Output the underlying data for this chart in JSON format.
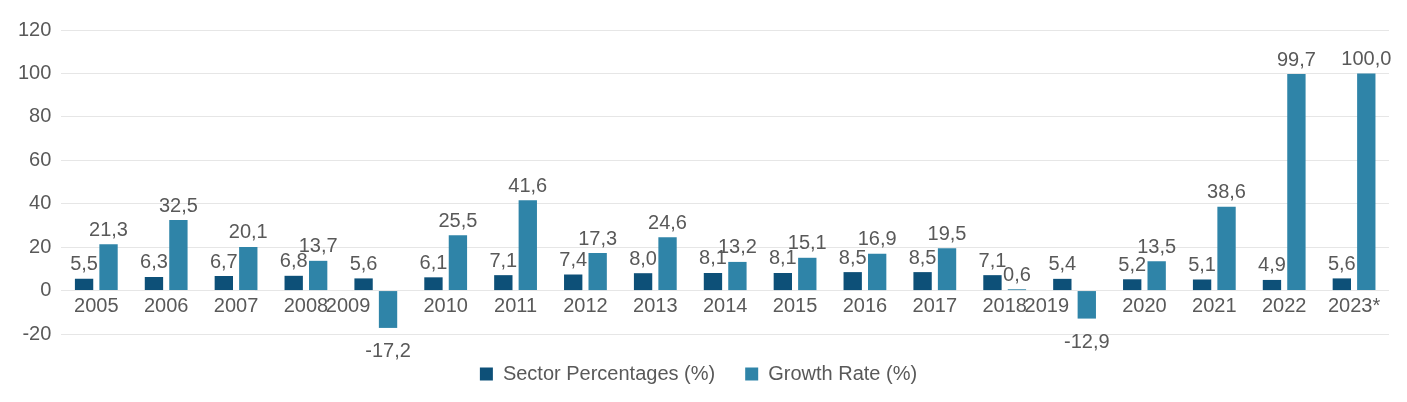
{
  "chart_data": {
    "type": "bar",
    "categories": [
      "2005",
      "2006",
      "2007",
      "2008",
      "2009",
      "2010",
      "2011",
      "2012",
      "2013",
      "2014",
      "2015",
      "2016",
      "2017",
      "2018",
      "2019",
      "2020",
      "2021",
      "2022",
      "2023*"
    ],
    "series": [
      {
        "name": "Sector Percentages (%)",
        "color": "#0d5078",
        "values": [
          5.5,
          6.3,
          6.7,
          6.8,
          5.6,
          6.1,
          7.1,
          7.4,
          8.0,
          8.1,
          8.1,
          8.5,
          8.5,
          7.1,
          5.4,
          5.2,
          5.1,
          4.9,
          5.6
        ],
        "value_labels": [
          "5,5",
          "6,3",
          "6,7",
          "6,8",
          "5,6",
          "6,1",
          "7,1",
          "7,4",
          "8,0",
          "8,1",
          "8,1",
          "8,5",
          "8,5",
          "7,1",
          "5,4",
          "5,2",
          "5,1",
          "4,9",
          "5,6"
        ]
      },
      {
        "name": "Growth Rate (%)",
        "color": "#2f84a8",
        "values": [
          21.3,
          32.5,
          20.1,
          13.7,
          -17.2,
          25.5,
          41.6,
          17.3,
          24.6,
          13.2,
          15.1,
          16.9,
          19.5,
          0.6,
          -12.9,
          13.5,
          38.6,
          99.7,
          100.0
        ],
        "value_labels": [
          "21,3",
          "32,5",
          "20,1",
          "13,7",
          "-17,2",
          "25,5",
          "41,6",
          "17,3",
          "24,6",
          "13,2",
          "15,1",
          "16,9",
          "19,5",
          "0,6",
          "-12,9",
          "13,5",
          "38,6",
          "99,7",
          "100,0"
        ]
      }
    ],
    "ylim": [
      -20,
      120
    ],
    "yticks": [
      -20,
      0,
      20,
      40,
      60,
      80,
      100,
      120
    ],
    "grid": "y",
    "legend": "bottom"
  }
}
